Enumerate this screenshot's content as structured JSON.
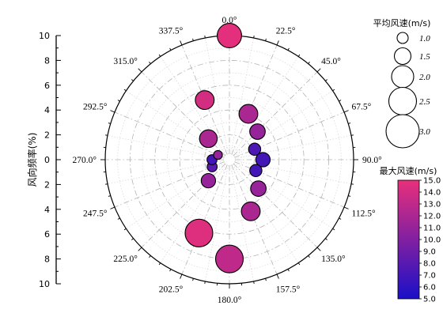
{
  "chart_data": {
    "type": "scatter",
    "subtype": "polar-bubble",
    "title": "",
    "radial_axis": {
      "label": "风向频率(%)",
      "range": [
        0,
        10
      ],
      "major_ticks": [
        0,
        2,
        4,
        6,
        8,
        10
      ],
      "tick_labels": [
        "0",
        "2",
        "4",
        "6",
        "8",
        "10"
      ]
    },
    "angular_axis": {
      "direction": "clockwise",
      "zero_location": "top",
      "tick_values": [
        0,
        22.5,
        45,
        67.5,
        90,
        112.5,
        135,
        157.5,
        180,
        202.5,
        225,
        247.5,
        270,
        292.5,
        315,
        337.5
      ],
      "tick_labels": [
        "0.0°",
        "22.5°",
        "45.0°",
        "67.5°",
        "90.0°",
        "112.5°",
        "135.0°",
        "157.5°",
        "180.0°",
        "202.5°",
        "225.0°",
        "247.5°",
        "270.0°",
        "292.5°",
        "315.0°",
        "337.5°"
      ]
    },
    "grid": true,
    "size_legend": {
      "title": "平均风速(m/s)",
      "values": [
        1.0,
        1.5,
        2.0,
        2.5,
        3.0
      ],
      "labels": [
        "1.0",
        "1.5",
        "2.0",
        "2.5",
        "3.0"
      ]
    },
    "color_legend": {
      "title": "最大风速(m/s)",
      "range": [
        5.0,
        15.0
      ],
      "ticks": [
        15.0,
        14.0,
        13.0,
        12.0,
        11.0,
        10.0,
        9.0,
        8.0,
        7.0,
        6.0,
        5.0
      ],
      "tick_labels": [
        "15.0",
        "14.0",
        "13.0",
        "12.0",
        "11.0",
        "10.0",
        "9.0",
        "8.0",
        "7.0",
        "6.0",
        "5.0"
      ],
      "color_low": "#1a10c8",
      "color_high": "#e8307a"
    },
    "points": [
      {
        "angle": 0,
        "frequency": 10.0,
        "mean_speed": 2.2,
        "max_speed": 14.8
      },
      {
        "angle": 22.5,
        "frequency": 4.0,
        "mean_speed": 1.7,
        "max_speed": 12.0
      },
      {
        "angle": 45,
        "frequency": 3.2,
        "mean_speed": 1.4,
        "max_speed": 11.0
      },
      {
        "angle": 67.5,
        "frequency": 2.2,
        "mean_speed": 1.1,
        "max_speed": 7.5
      },
      {
        "angle": 90,
        "frequency": 2.7,
        "mean_speed": 1.3,
        "max_speed": 7.0
      },
      {
        "angle": 112.5,
        "frequency": 2.3,
        "mean_speed": 1.1,
        "max_speed": 7.0
      },
      {
        "angle": 135,
        "frequency": 3.3,
        "mean_speed": 1.4,
        "max_speed": 11.0
      },
      {
        "angle": 157.5,
        "frequency": 4.5,
        "mean_speed": 1.7,
        "max_speed": 12.0
      },
      {
        "angle": 180,
        "frequency": 8.0,
        "mean_speed": 2.5,
        "max_speed": 13.0
      },
      {
        "angle": 202.5,
        "frequency": 6.4,
        "mean_speed": 2.5,
        "max_speed": 14.5
      },
      {
        "angle": 225,
        "frequency": 2.4,
        "mean_speed": 1.3,
        "max_speed": 11.0
      },
      {
        "angle": 247.5,
        "frequency": 1.5,
        "mean_speed": 0.9,
        "max_speed": 8.0
      },
      {
        "angle": 270,
        "frequency": 1.4,
        "mean_speed": 0.9,
        "max_speed": 7.0
      },
      {
        "angle": 292.5,
        "frequency": 1.0,
        "mean_speed": 0.8,
        "max_speed": 11.0
      },
      {
        "angle": 315,
        "frequency": 2.4,
        "mean_speed": 1.6,
        "max_speed": 12.0
      },
      {
        "angle": 337.5,
        "frequency": 5.2,
        "mean_speed": 1.7,
        "max_speed": 14.0
      }
    ]
  }
}
